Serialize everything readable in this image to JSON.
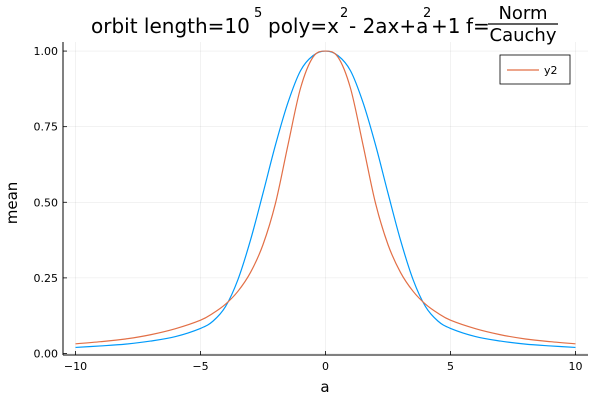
{
  "chart_data": {
    "type": "line",
    "title": {
      "prefix": "orbit length=10",
      "exp": "5",
      "poly_1": "poly=x",
      "poly_sup_1": "2",
      "poly_2": "- 2ax+a",
      "poly_sup_2": "2",
      "poly_3": "+1",
      "f_label": "f=",
      "frac_num": "Norm",
      "frac_den": "Cauchy"
    },
    "xlabel": "a",
    "ylabel": "mean",
    "xlim": [
      -10.5,
      10.5
    ],
    "ylim": [
      -0.005,
      1.03
    ],
    "xticks": [
      -10,
      -5,
      0,
      5,
      10
    ],
    "xtick_labels": [
      "−10",
      "−5",
      "0",
      "5",
      "10"
    ],
    "yticks": [
      0,
      0.25,
      0.5,
      0.75,
      1.0
    ],
    "ytick_labels": [
      "0.00",
      "0.25",
      "0.50",
      "0.75",
      "1.00"
    ],
    "grid": true,
    "legend_position": "top-right",
    "series": [
      {
        "name": "",
        "color": "#009AFA",
        "x": [
          -10,
          -9,
          -8,
          -7,
          -6,
          -5,
          -4.5,
          -4,
          -3.5,
          -3,
          -2.5,
          -2,
          -1.5,
          -1,
          -0.5,
          0,
          0.5,
          1,
          1.5,
          2,
          2.5,
          3,
          3.5,
          4,
          4.5,
          5,
          6,
          7,
          8,
          9,
          10
        ],
        "y": [
          0.02,
          0.025,
          0.031,
          0.041,
          0.056,
          0.083,
          0.107,
          0.155,
          0.245,
          0.375,
          0.53,
          0.69,
          0.83,
          0.935,
          0.985,
          1.0,
          0.985,
          0.935,
          0.83,
          0.69,
          0.53,
          0.375,
          0.245,
          0.155,
          0.107,
          0.083,
          0.056,
          0.041,
          0.031,
          0.025,
          0.02
        ]
      },
      {
        "name": "y2",
        "color": "#E26F46",
        "x": [
          -10,
          -9,
          -8,
          -7,
          -6,
          -5,
          -4.5,
          -4,
          -3.5,
          -3,
          -2.5,
          -2,
          -1.5,
          -1,
          -0.5,
          0,
          0.5,
          1,
          1.5,
          2,
          2.5,
          3,
          3.5,
          4,
          4.5,
          5,
          6,
          7,
          8,
          9,
          10
        ],
        "y": [
          0.032,
          0.039,
          0.048,
          0.062,
          0.082,
          0.11,
          0.133,
          0.163,
          0.206,
          0.268,
          0.36,
          0.497,
          0.69,
          0.877,
          0.98,
          1.0,
          0.98,
          0.877,
          0.69,
          0.497,
          0.36,
          0.268,
          0.206,
          0.163,
          0.133,
          0.11,
          0.082,
          0.062,
          0.048,
          0.039,
          0.032
        ]
      }
    ]
  }
}
